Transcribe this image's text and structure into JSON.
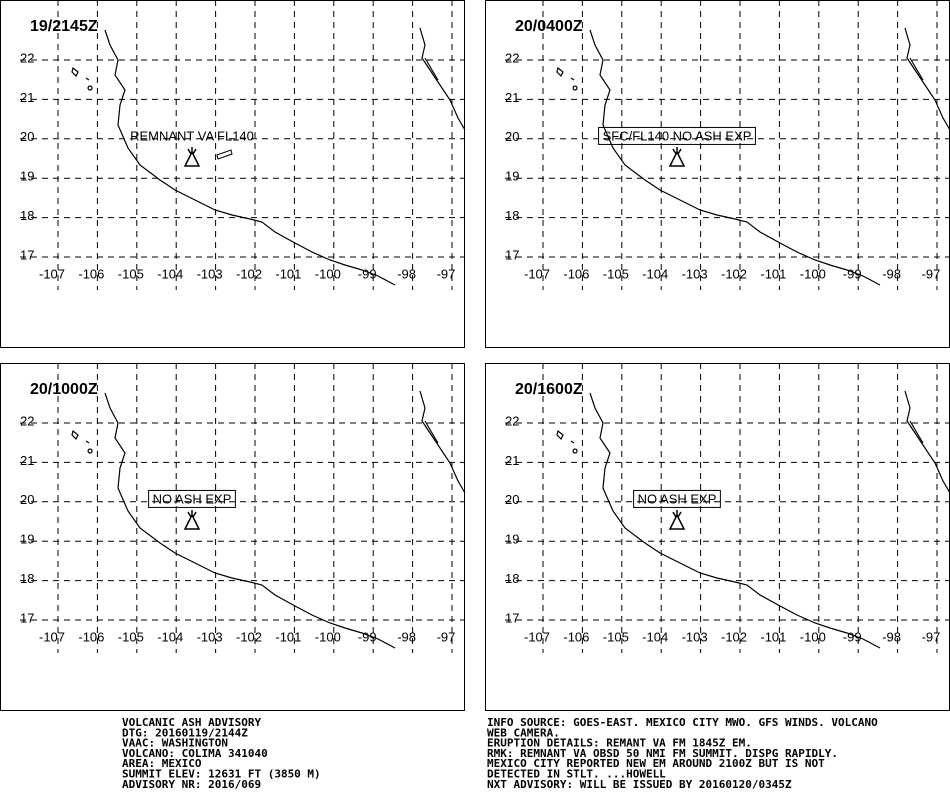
{
  "lat_labels": [
    22,
    21,
    20,
    19,
    18,
    17
  ],
  "lon_labels": [
    -107,
    -106,
    -105,
    -104,
    -103,
    -102,
    -101,
    -100,
    -99,
    -98,
    -97
  ],
  "panels": [
    {
      "time": "19/2145Z",
      "annotation": "REMNANT VA FL140"
    },
    {
      "time": "20/0400Z",
      "annotation": "SFC/FL140 NO ASH EXP"
    },
    {
      "time": "20/1000Z",
      "annotation": "NO ASH EXP"
    },
    {
      "time": "20/1600Z",
      "annotation": "NO ASH EXP"
    }
  ],
  "advisory_left": [
    "VOLCANIC ASH ADVISORY",
    "DTG: 20160119/2144Z",
    "VAAC: WASHINGTON",
    "VOLCANO: COLIMA 341040",
    "AREA: MEXICO",
    "SUMMIT ELEV: 12631 FT (3850 M)",
    "ADVISORY NR: 2016/069"
  ],
  "advisory_right": [
    "INFO SOURCE: GOES-EAST. MEXICO CITY MWO. GFS WINDS. VOLCANO",
    "WEB CAMERA.",
    "ERUPTION DETAILS: REMANT VA FM 1845Z EM.",
    "RMK: REMNANT VA OBSD 50 NMI FM SUMMIT. DISPG RAPIDLY.",
    "MEXICO CITY REPORTED NEW EM AROUND 2100Z BUT IS NOT",
    "DETECTED IN STLT. ...HOWELL",
    "NXT ADVISORY: WILL BE ISSUED BY 20160120/0345Z"
  ]
}
